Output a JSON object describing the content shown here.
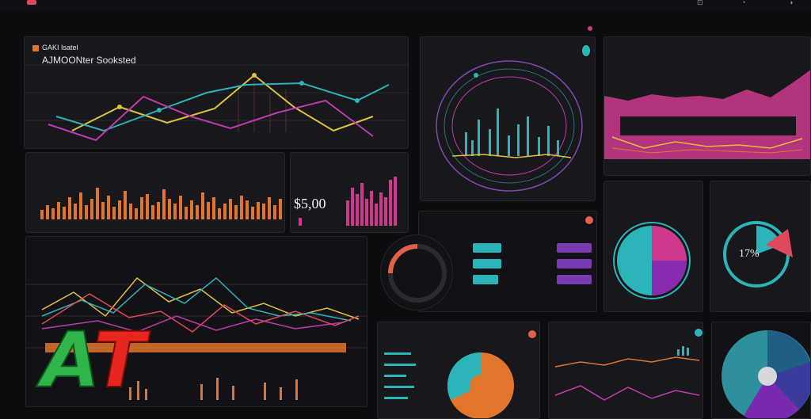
{
  "header": {
    "app_title": "",
    "icons": [
      "grid-icon",
      "bell-icon",
      "user-icon"
    ]
  },
  "panels": {
    "line_overview": {
      "section_label": "",
      "title": "GAKI Isatel",
      "subtitle": "AJMOONter Sooksted",
      "caption": "",
      "legend": "",
      "axis_right": [
        "",
        "",
        ""
      ]
    },
    "bars_orange": {
      "title": "",
      "label": "",
      "value_label": "",
      "side_value": ""
    },
    "bars_magenta": {
      "title": "",
      "label": "",
      "value": "$5,00"
    },
    "circle_chart": {
      "section_label": "",
      "title": "",
      "inner_label": ""
    },
    "area_pink": {
      "title": ""
    },
    "stats_mid": {
      "title": "",
      "ring_value": ""
    },
    "ring_teal": {
      "title": "",
      "value": "17%"
    },
    "wave_lines": {
      "title": ""
    },
    "donut_bottom": {
      "title": "",
      "value": ""
    },
    "lines_small": {
      "title": ""
    },
    "pie_right": {
      "value": ""
    }
  },
  "watermark": {
    "letter_a": "A",
    "letter_t": "T",
    "caption": ""
  },
  "colors": {
    "background": "#0d0d10",
    "panel": "#17171c",
    "orange": "#e2752c",
    "magenta": "#d0388e",
    "teal": "#2bb5b8",
    "yellow": "#e0c13a",
    "pink": "#e0407a",
    "coral": "#e0604a"
  }
}
